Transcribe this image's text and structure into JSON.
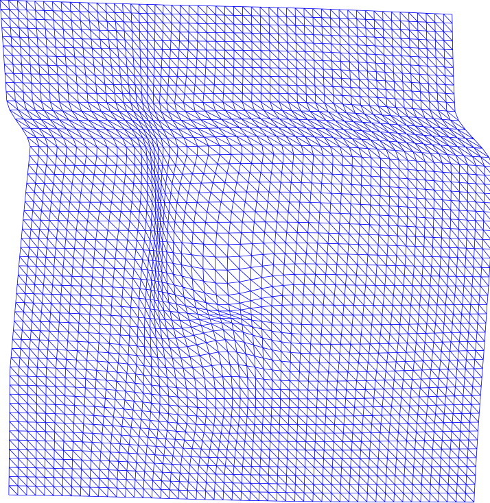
{
  "figure": {
    "type": "deformed-triangular-mesh",
    "background_color": "#ffffff",
    "line_color": "#0000ff",
    "grid_columns": 52,
    "grid_rows": 54,
    "triangulation": "quad-split-diagonal"
  }
}
